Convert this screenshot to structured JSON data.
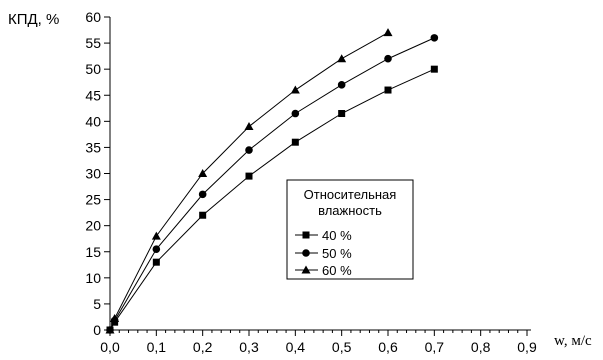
{
  "chart_data": {
    "type": "line",
    "ylabel": "КПД, %",
    "xlabel": "w, м/с",
    "xlim": [
      0,
      0.9
    ],
    "ylim": [
      0,
      60
    ],
    "x_ticks": [
      "0,0",
      "0,1",
      "0,2",
      "0,3",
      "0,4",
      "0,5",
      "0,6",
      "0,7",
      "0,8",
      "0,9"
    ],
    "y_ticks": [
      "0",
      "5",
      "10",
      "15",
      "20",
      "25",
      "30",
      "35",
      "40",
      "45",
      "50",
      "55",
      "60"
    ],
    "legend_title_line1": "Относительная",
    "legend_title_line2": "влажность",
    "legend_position": "center-right",
    "grid": false,
    "series": [
      {
        "name": "40 %",
        "marker": "square",
        "x": [
          0.0,
          0.01,
          0.1,
          0.2,
          0.3,
          0.4,
          0.5,
          0.6,
          0.7
        ],
        "y": [
          0,
          1.5,
          13,
          22,
          29.5,
          36,
          41.5,
          46,
          50
        ]
      },
      {
        "name": "50 %",
        "marker": "circle",
        "x": [
          0.0,
          0.01,
          0.1,
          0.2,
          0.3,
          0.4,
          0.5,
          0.6,
          0.7
        ],
        "y": [
          0,
          1.8,
          15.5,
          26,
          34.5,
          41.5,
          47,
          52,
          56
        ]
      },
      {
        "name": "60 %",
        "marker": "triangle",
        "x": [
          0.0,
          0.01,
          0.1,
          0.2,
          0.3,
          0.4,
          0.5,
          0.6
        ],
        "y": [
          0,
          2.2,
          18,
          30,
          39,
          46,
          52,
          57
        ]
      }
    ]
  }
}
